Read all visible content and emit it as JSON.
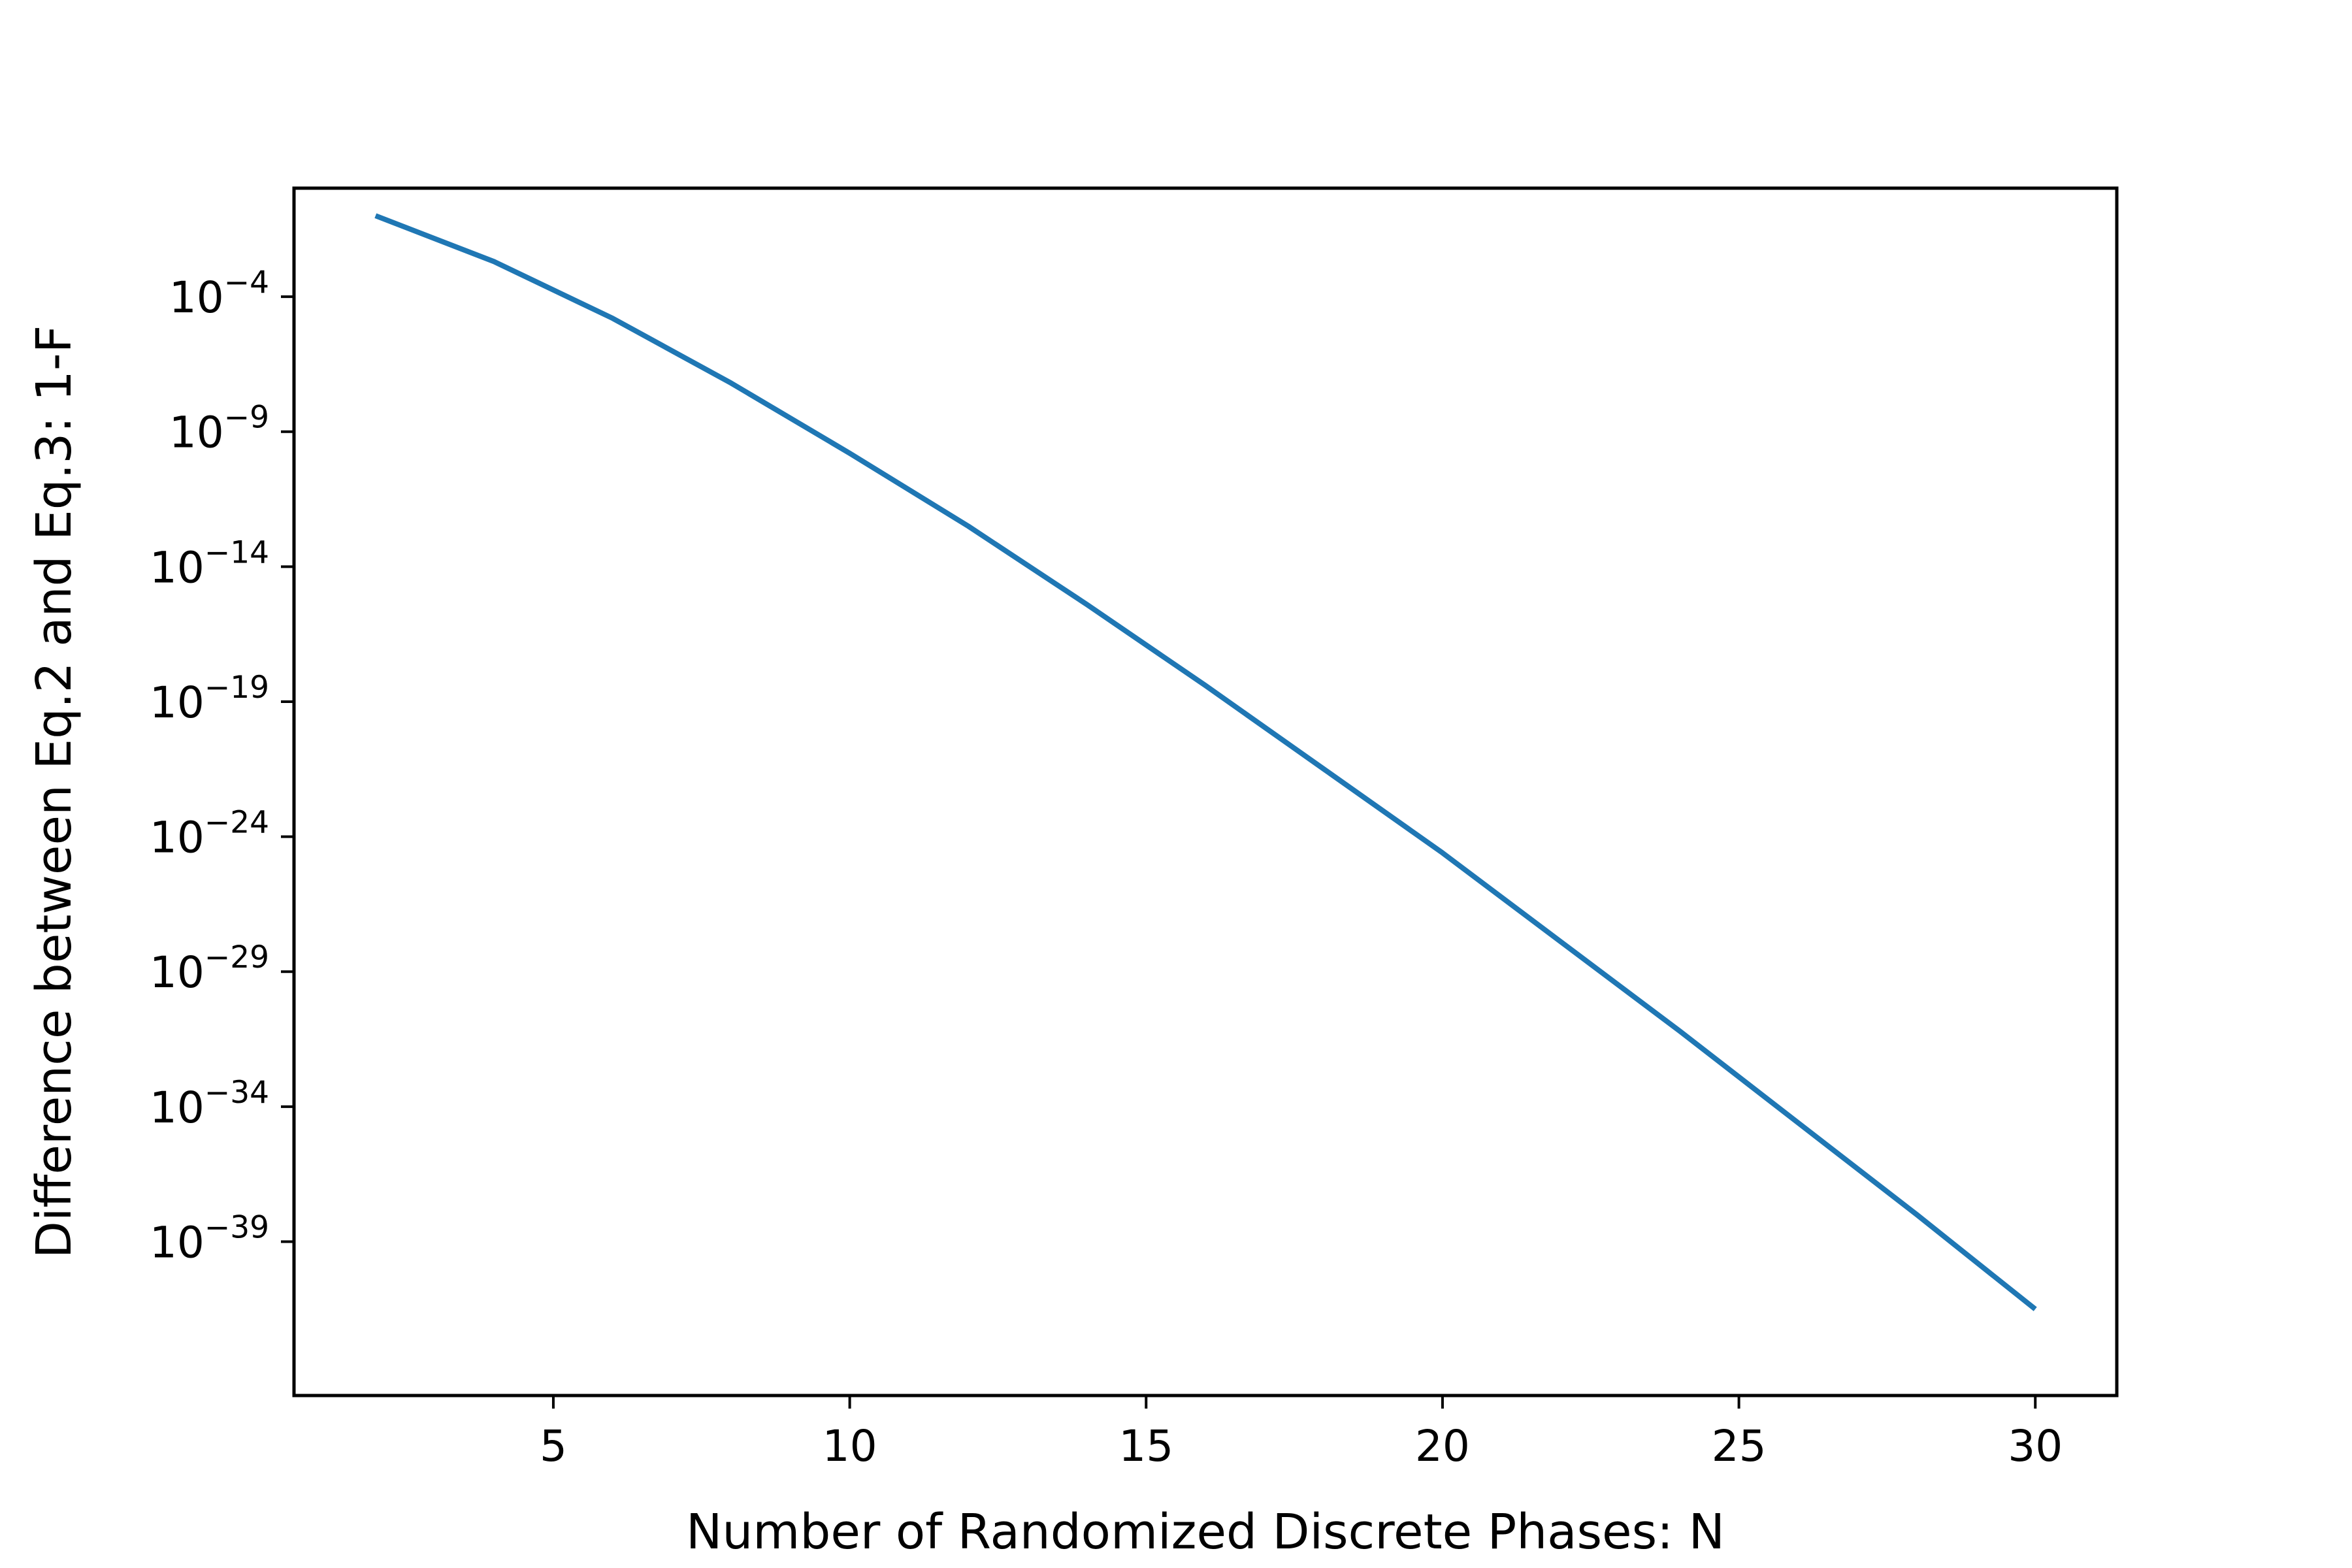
{
  "chart_data": {
    "type": "line",
    "title": "",
    "xlabel": "Number of Randomized Discrete Phases: N",
    "ylabel": "Difference between Eq.2 and Eq.3: 1-F",
    "xlim": [
      0.625,
      31.375
    ],
    "ylim_log10": [
      -44.7,
      0.02
    ],
    "yscale": "log",
    "grid": false,
    "x_ticks": [
      5,
      10,
      15,
      20,
      25,
      30
    ],
    "x_tick_labels": [
      "5",
      "10",
      "15",
      "20",
      "25",
      "30"
    ],
    "y_tick_exponents": [
      -4,
      -9,
      -14,
      -19,
      -24,
      -29,
      -34,
      -39
    ],
    "y_tick_labels": [
      {
        "base": "10",
        "exp": "−4"
      },
      {
        "base": "10",
        "exp": "−9"
      },
      {
        "base": "10",
        "exp": "−14"
      },
      {
        "base": "10",
        "exp": "−19"
      },
      {
        "base": "10",
        "exp": "−24"
      },
      {
        "base": "10",
        "exp": "−29"
      },
      {
        "base": "10",
        "exp": "−34"
      },
      {
        "base": "10",
        "exp": "−39"
      }
    ],
    "series": [
      {
        "color": "#1f77b4",
        "x": [
          2,
          4,
          6,
          8,
          10,
          12,
          14,
          16,
          18,
          20,
          22,
          24,
          26,
          28,
          30
        ],
        "y": [
          "1e-1",
          "1e-2.7",
          "1e-4.8",
          "1e-7.2",
          "1e-9.8",
          "1e-12.5",
          "1e-15.4",
          "1e-18.4",
          "1e-21.5",
          "1e-24.6",
          "1e-27.9",
          "1e-31.2",
          "1e-34.6",
          "1e-38.0",
          "1e-41.5"
        ]
      }
    ]
  }
}
